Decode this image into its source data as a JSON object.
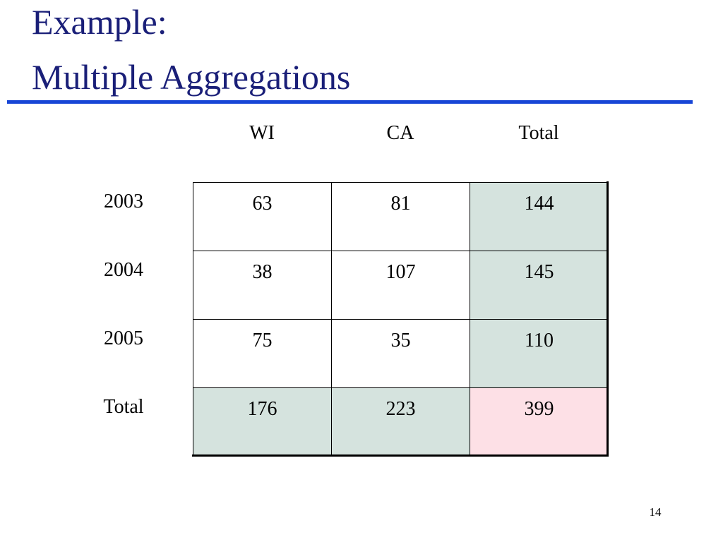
{
  "title": {
    "lines": [
      "Example:",
      "Multiple Aggregations"
    ]
  },
  "table": {
    "columns": [
      "WI",
      "CA",
      "Total"
    ],
    "rows": [
      {
        "label": "2003",
        "cells": [
          "63",
          "81",
          "144"
        ]
      },
      {
        "label": "2004",
        "cells": [
          "38",
          "107",
          "145"
        ]
      },
      {
        "label": "2005",
        "cells": [
          "75",
          "35",
          "110"
        ]
      },
      {
        "label": "Total",
        "cells": [
          "176",
          "223",
          "399"
        ]
      }
    ]
  },
  "page_number": "14"
}
